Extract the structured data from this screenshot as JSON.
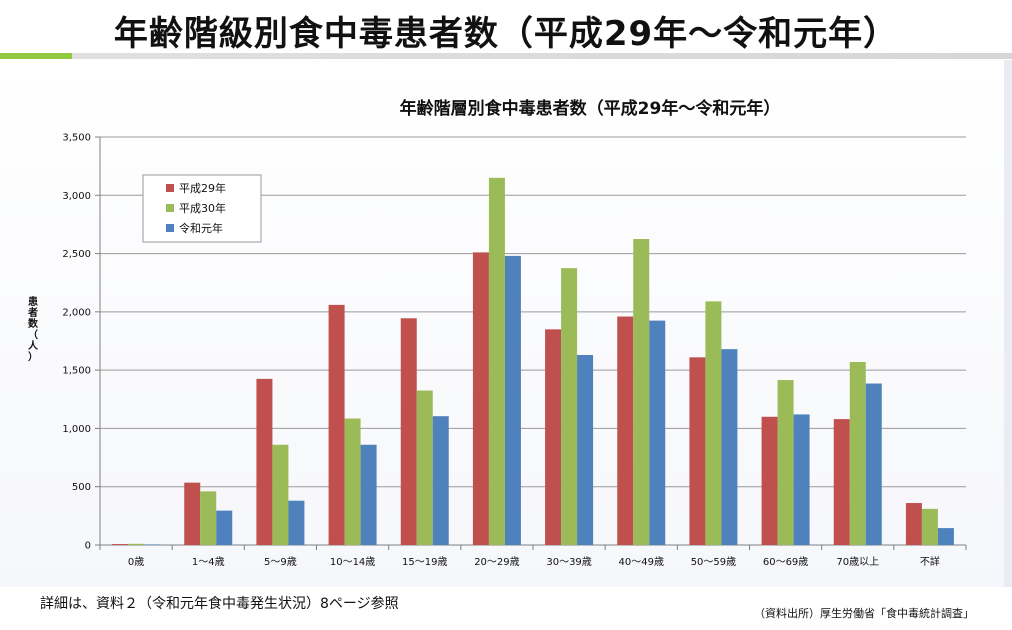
{
  "slide": {
    "title": "年齢階級別食中毒患者数（平成29年～令和元年）",
    "footnote": "詳細は、資料２（令和元年食中毒発生状況）8ページ参照",
    "source": "（資料出所）厚生労働省「食中毒統計調査」"
  },
  "chart_data": {
    "type": "bar",
    "title": "年齢階層別食中毒患者数（平成29年～令和元年）",
    "ylabel": "患者数（人）",
    "xlabel": "",
    "ylim": [
      0,
      3500
    ],
    "yticks": [
      0,
      500,
      1000,
      1500,
      2000,
      2500,
      3000,
      3500
    ],
    "ytick_labels": [
      "0",
      "500",
      "1,000",
      "1,500",
      "2,000",
      "2,500",
      "3,000",
      "3,500"
    ],
    "grid": true,
    "legend_position": "top-left",
    "categories": [
      "0歳",
      "1～4歳",
      "5～9歳",
      "10～14歳",
      "15～19歳",
      "20～29歳",
      "30～39歳",
      "40～49歳",
      "50～59歳",
      "60～69歳",
      "70歳以上",
      "不詳"
    ],
    "series": [
      {
        "name": "平成29年",
        "color": "#c0504d",
        "values": [
          8,
          535,
          1425,
          2060,
          1945,
          2510,
          1850,
          1960,
          1610,
          1100,
          1080,
          360
        ]
      },
      {
        "name": "平成30年",
        "color": "#9bbb59",
        "values": [
          10,
          460,
          860,
          1085,
          1325,
          3150,
          2375,
          2625,
          2090,
          1415,
          1570,
          310
        ]
      },
      {
        "name": "令和元年",
        "color": "#4f81bd",
        "values": [
          5,
          295,
          380,
          860,
          1105,
          2480,
          1630,
          1925,
          1680,
          1120,
          1385,
          145
        ]
      }
    ]
  }
}
